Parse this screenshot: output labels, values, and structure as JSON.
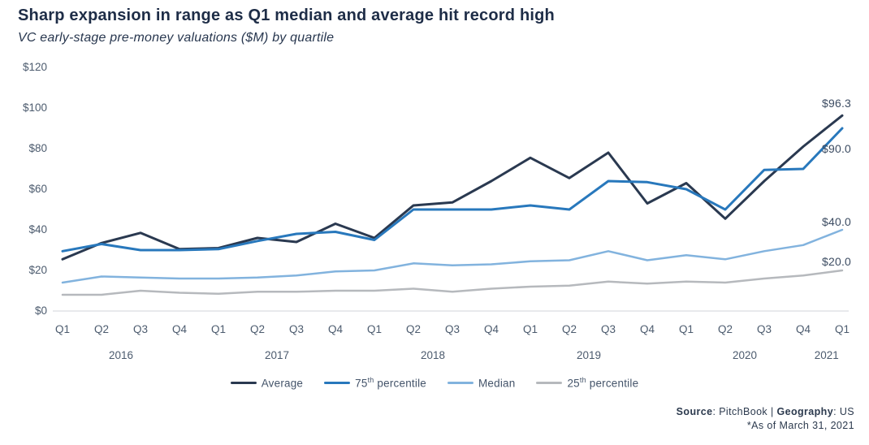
{
  "header": {
    "title": "Sharp expansion in range as Q1 median and average hit record high",
    "subtitle": "VC early-stage pre-money valuations ($M) by quartile"
  },
  "chart_data": {
    "type": "line",
    "title": "Sharp expansion in range as Q1 median and average hit record high",
    "subtitle": "VC early-stage pre-money valuations ($M) by quartile",
    "ylim": [
      0,
      120
    ],
    "grid": false,
    "legend_position": "bottom",
    "y_ticks": [
      {
        "label": "$0",
        "value": 0
      },
      {
        "label": "$20",
        "value": 20
      },
      {
        "label": "$40",
        "value": 40
      },
      {
        "label": "$60",
        "value": 60
      },
      {
        "label": "$80",
        "value": 80
      },
      {
        "label": "$100",
        "value": 100
      },
      {
        "label": "$120",
        "value": 120
      }
    ],
    "x_quarters": [
      "Q1",
      "Q2",
      "Q3",
      "Q4",
      "Q1",
      "Q2",
      "Q3",
      "Q4",
      "Q1",
      "Q2",
      "Q3",
      "Q4",
      "Q1",
      "Q2",
      "Q3",
      "Q4",
      "Q1",
      "Q2",
      "Q3",
      "Q4",
      "Q1"
    ],
    "x_years": [
      "2016",
      "2017",
      "2018",
      "2019",
      "2020",
      "2021"
    ],
    "series": [
      {
        "name": "Average",
        "slug": "average",
        "color": "#2a3950",
        "end_label": "$96.3",
        "legend": {
          "pre": "Average",
          "sup": "",
          "rest": ""
        },
        "values": [
          25.5,
          33.5,
          38.5,
          30.5,
          31,
          36,
          34,
          43,
          36,
          52,
          53.5,
          64,
          75.5,
          65.5,
          78,
          53,
          63,
          45.5,
          64,
          81,
          96.3
        ]
      },
      {
        "name": "75th percentile",
        "slug": "75th-percentile",
        "color": "#2878bc",
        "end_label": "$90.0",
        "legend": {
          "pre": "75",
          "sup": "th",
          "rest": " percentile"
        },
        "values": [
          29.5,
          33,
          30,
          30,
          30.5,
          34.5,
          38,
          39,
          35,
          50,
          50,
          50,
          52,
          50,
          64,
          63.5,
          60,
          50,
          69.5,
          70,
          90
        ]
      },
      {
        "name": "Median",
        "slug": "median",
        "color": "#82b3de",
        "end_label": "$40.0",
        "legend": {
          "pre": "Median",
          "sup": "",
          "rest": ""
        },
        "values": [
          14,
          17,
          16.5,
          16,
          16,
          16.5,
          17.5,
          19.5,
          20,
          23.5,
          22.5,
          23,
          24.5,
          25,
          29.5,
          25,
          27.5,
          25.5,
          29.5,
          32.5,
          40
        ]
      },
      {
        "name": "25th percentile",
        "slug": "25th-percentile",
        "color": "#b6b9bd",
        "end_label": "$20.0",
        "legend": {
          "pre": "25",
          "sup": "th",
          "rest": " percentile"
        },
        "values": [
          8,
          8,
          10,
          9,
          8.5,
          9.5,
          9.5,
          10,
          10,
          11,
          9.5,
          11,
          12,
          12.5,
          14.5,
          13.5,
          14.5,
          14,
          16,
          17.5,
          20
        ]
      }
    ],
    "axis_line_color": "#d9dce0"
  },
  "footer": {
    "source_label": "Source",
    "source_mid": ": PitchBook | ",
    "geo_label": "Geography",
    "geo_value": ": US",
    "asof": "*As of March 31, 2021"
  }
}
